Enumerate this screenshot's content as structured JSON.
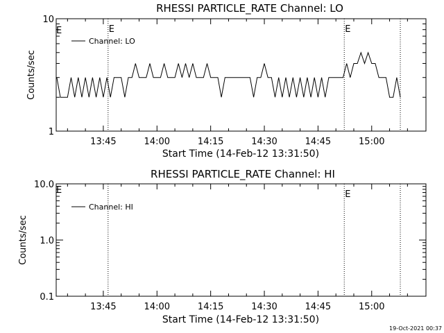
{
  "footer": {
    "date_stamp": "19-Oct-2021 00:37"
  },
  "chart_data": [
    {
      "type": "line",
      "title": "RHESSI PARTICLE_RATE Channel: LO",
      "xlabel": "Start Time (14-Feb-12 13:31:50)",
      "ylabel": "Counts/sec",
      "y_scale": "log",
      "ylim": [
        1,
        10
      ],
      "y_tick_labels": [
        "1",
        "10"
      ],
      "x_tick_labels": [
        "13:45",
        "14:00",
        "14:15",
        "14:30",
        "14:45",
        "15:00"
      ],
      "xlim": [
        "13:31:50",
        "15:15:10"
      ],
      "legend_label": "Channel: LO",
      "legend_position": "top-left",
      "vertical_markers": [
        {
          "time": "13:46:20",
          "label": "E"
        },
        {
          "time": "14:52:20",
          "label": "E"
        },
        {
          "time": "15:08:00",
          "label": ""
        }
      ],
      "corner_label": "E",
      "series": [
        {
          "name": "Channel: LO",
          "data_gap_after": "15:08:00",
          "x": [
            "13:32:00",
            "13:33:00",
            "13:34:00",
            "13:35:00",
            "13:36:00",
            "13:37:00",
            "13:38:00",
            "13:39:00",
            "13:40:00",
            "13:41:00",
            "13:42:00",
            "13:43:00",
            "13:44:00",
            "13:45:00",
            "13:46:00",
            "13:47:00",
            "13:48:00",
            "13:49:00",
            "13:50:00",
            "13:51:00",
            "13:52:00",
            "13:53:00",
            "13:54:00",
            "13:55:00",
            "13:56:00",
            "13:57:00",
            "13:58:00",
            "13:59:00",
            "14:00:00",
            "14:01:00",
            "14:02:00",
            "14:03:00",
            "14:04:00",
            "14:05:00",
            "14:06:00",
            "14:07:00",
            "14:08:00",
            "14:09:00",
            "14:10:00",
            "14:11:00",
            "14:12:00",
            "14:13:00",
            "14:14:00",
            "14:15:00",
            "14:16:00",
            "14:17:00",
            "14:18:00",
            "14:19:00",
            "14:20:00",
            "14:21:00",
            "14:22:00",
            "14:23:00",
            "14:24:00",
            "14:25:00",
            "14:26:00",
            "14:27:00",
            "14:28:00",
            "14:29:00",
            "14:30:00",
            "14:31:00",
            "14:32:00",
            "14:33:00",
            "14:34:00",
            "14:35:00",
            "14:36:00",
            "14:37:00",
            "14:38:00",
            "14:39:00",
            "14:40:00",
            "14:41:00",
            "14:42:00",
            "14:43:00",
            "14:44:00",
            "14:45:00",
            "14:46:00",
            "14:47:00",
            "14:48:00",
            "14:49:00",
            "14:50:00",
            "14:51:00",
            "14:52:00",
            "14:53:00",
            "14:54:00",
            "14:55:00",
            "14:56:00",
            "14:57:00",
            "14:58:00",
            "14:59:00",
            "15:00:00",
            "15:01:00",
            "15:02:00",
            "15:03:00",
            "15:04:00",
            "15:05:00",
            "15:06:00",
            "15:07:00",
            "15:08:00"
          ],
          "y": [
            3,
            2,
            2,
            2,
            3,
            2,
            3,
            2,
            3,
            2,
            3,
            2,
            3,
            2,
            3,
            2,
            3,
            3,
            3,
            2,
            3,
            3,
            4,
            3,
            3,
            3,
            4,
            3,
            3,
            3,
            4,
            3,
            3,
            3,
            4,
            3,
            4,
            3,
            4,
            3,
            3,
            3,
            4,
            3,
            3,
            3,
            2,
            3,
            3,
            3,
            3,
            3,
            3,
            3,
            3,
            2,
            3,
            3,
            4,
            3,
            3,
            2,
            3,
            2,
            3,
            2,
            3,
            2,
            3,
            2,
            3,
            2,
            3,
            2,
            3,
            2,
            3,
            3,
            3,
            3,
            3,
            4,
            3,
            4,
            4,
            5,
            4,
            5,
            4,
            4,
            3,
            3,
            3,
            2,
            2,
            3,
            2
          ]
        }
      ]
    },
    {
      "type": "line",
      "title": "RHESSI PARTICLE_RATE Channel: HI",
      "xlabel": "Start Time (14-Feb-12 13:31:50)",
      "ylabel": "Counts/sec",
      "y_scale": "log",
      "ylim": [
        0.1,
        10.0
      ],
      "y_tick_labels": [
        "0.1",
        "1.0",
        "10.0"
      ],
      "x_tick_labels": [
        "13:45",
        "14:00",
        "14:15",
        "14:30",
        "14:45",
        "15:00"
      ],
      "xlim": [
        "13:31:50",
        "15:15:10"
      ],
      "legend_label": "Channel: HI",
      "legend_position": "top-left",
      "vertical_markers": [
        {
          "time": "13:46:20",
          "label": ""
        },
        {
          "time": "14:52:20",
          "label": "E"
        },
        {
          "time": "15:08:00",
          "label": ""
        }
      ],
      "corner_label": "E",
      "series": [
        {
          "name": "Channel: HI",
          "x": [],
          "y": []
        }
      ]
    }
  ]
}
